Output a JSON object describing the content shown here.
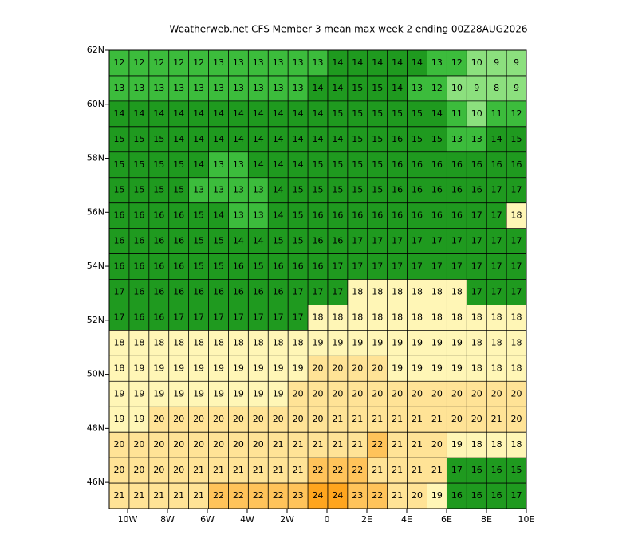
{
  "chart_data": {
    "type": "heatmap",
    "title": "Weatherweb.net CFS Member 3 mean max week 2 ending 00Z28AUG2026",
    "xlim": [
      -10.92,
      10
    ],
    "ylim": [
      45.03,
      62
    ],
    "xticks": [
      {
        "value": -10,
        "label": "10W"
      },
      {
        "value": -8,
        "label": "8W"
      },
      {
        "value": -6,
        "label": "6W"
      },
      {
        "value": -4,
        "label": "4W"
      },
      {
        "value": -2,
        "label": "2W"
      },
      0,
      {
        "value": 2,
        "label": "2E"
      },
      {
        "value": 4,
        "label": "4E"
      },
      {
        "value": 6,
        "label": "6E"
      },
      {
        "value": 8,
        "label": "8E"
      },
      {
        "value": 10,
        "label": "10E"
      }
    ],
    "yticks": [
      {
        "value": 46,
        "label": "46N"
      },
      {
        "value": 48,
        "label": "48N"
      },
      {
        "value": 50,
        "label": "50N"
      },
      {
        "value": 52,
        "label": "52N"
      },
      {
        "value": 54,
        "label": "54N"
      },
      {
        "value": 56,
        "label": "56N"
      },
      {
        "value": 58,
        "label": "58N"
      },
      {
        "value": 60,
        "label": "60N"
      },
      {
        "value": 62,
        "label": "62N"
      }
    ],
    "values": [
      [
        12,
        12,
        12,
        12,
        12,
        13,
        13,
        13,
        13,
        13,
        13,
        14,
        14,
        14,
        14,
        14,
        13,
        12,
        10,
        9,
        9
      ],
      [
        13,
        13,
        13,
        13,
        13,
        13,
        13,
        13,
        13,
        13,
        14,
        14,
        15,
        15,
        14,
        13,
        12,
        10,
        9,
        8,
        9
      ],
      [
        14,
        14,
        14,
        14,
        14,
        14,
        14,
        14,
        14,
        14,
        14,
        15,
        15,
        15,
        15,
        15,
        14,
        11,
        10,
        11,
        12
      ],
      [
        15,
        15,
        15,
        14,
        14,
        14,
        14,
        14,
        14,
        14,
        14,
        14,
        15,
        15,
        16,
        15,
        15,
        13,
        13,
        14,
        15
      ],
      [
        15,
        15,
        15,
        15,
        14,
        13,
        13,
        14,
        14,
        14,
        15,
        15,
        15,
        15,
        16,
        16,
        16,
        16,
        16,
        16,
        16
      ],
      [
        15,
        15,
        15,
        15,
        13,
        13,
        13,
        13,
        14,
        15,
        15,
        15,
        15,
        15,
        16,
        16,
        16,
        16,
        16,
        17,
        17
      ],
      [
        16,
        16,
        16,
        16,
        15,
        14,
        13,
        13,
        14,
        15,
        16,
        16,
        16,
        16,
        16,
        16,
        16,
        16,
        17,
        17,
        18
      ],
      [
        16,
        16,
        16,
        16,
        15,
        15,
        14,
        14,
        15,
        15,
        16,
        16,
        17,
        17,
        17,
        17,
        17,
        17,
        17,
        17,
        17
      ],
      [
        16,
        16,
        16,
        16,
        15,
        15,
        16,
        15,
        16,
        16,
        16,
        17,
        17,
        17,
        17,
        17,
        17,
        17,
        17,
        17,
        17
      ],
      [
        17,
        16,
        16,
        16,
        16,
        16,
        16,
        16,
        16,
        17,
        17,
        17,
        18,
        18,
        18,
        18,
        18,
        18,
        17,
        17,
        17
      ],
      [
        17,
        16,
        16,
        17,
        17,
        17,
        17,
        17,
        17,
        17,
        18,
        18,
        18,
        18,
        18,
        18,
        18,
        18,
        18,
        18,
        18
      ],
      [
        18,
        18,
        18,
        18,
        18,
        18,
        18,
        18,
        18,
        18,
        19,
        19,
        19,
        19,
        19,
        19,
        19,
        19,
        18,
        18,
        18
      ],
      [
        18,
        19,
        19,
        19,
        19,
        19,
        19,
        19,
        19,
        19,
        20,
        20,
        20,
        20,
        19,
        19,
        19,
        19,
        18,
        18,
        18
      ],
      [
        19,
        19,
        19,
        19,
        19,
        19,
        19,
        19,
        19,
        20,
        20,
        20,
        20,
        20,
        20,
        20,
        20,
        20,
        20,
        20,
        20
      ],
      [
        19,
        19,
        20,
        20,
        20,
        20,
        20,
        20,
        20,
        20,
        20,
        21,
        21,
        21,
        21,
        21,
        21,
        20,
        20,
        21,
        20
      ],
      [
        20,
        20,
        20,
        20,
        20,
        20,
        20,
        20,
        21,
        21,
        21,
        21,
        21,
        22,
        21,
        21,
        20,
        19,
        18,
        18,
        18
      ],
      [
        20,
        20,
        20,
        20,
        21,
        21,
        21,
        21,
        21,
        21,
        22,
        22,
        22,
        21,
        21,
        21,
        21,
        17,
        16,
        16,
        15
      ],
      [
        21,
        21,
        21,
        21,
        21,
        22,
        22,
        22,
        22,
        23,
        24,
        24,
        23,
        22,
        21,
        20,
        19,
        16,
        16,
        16,
        17
      ]
    ]
  }
}
